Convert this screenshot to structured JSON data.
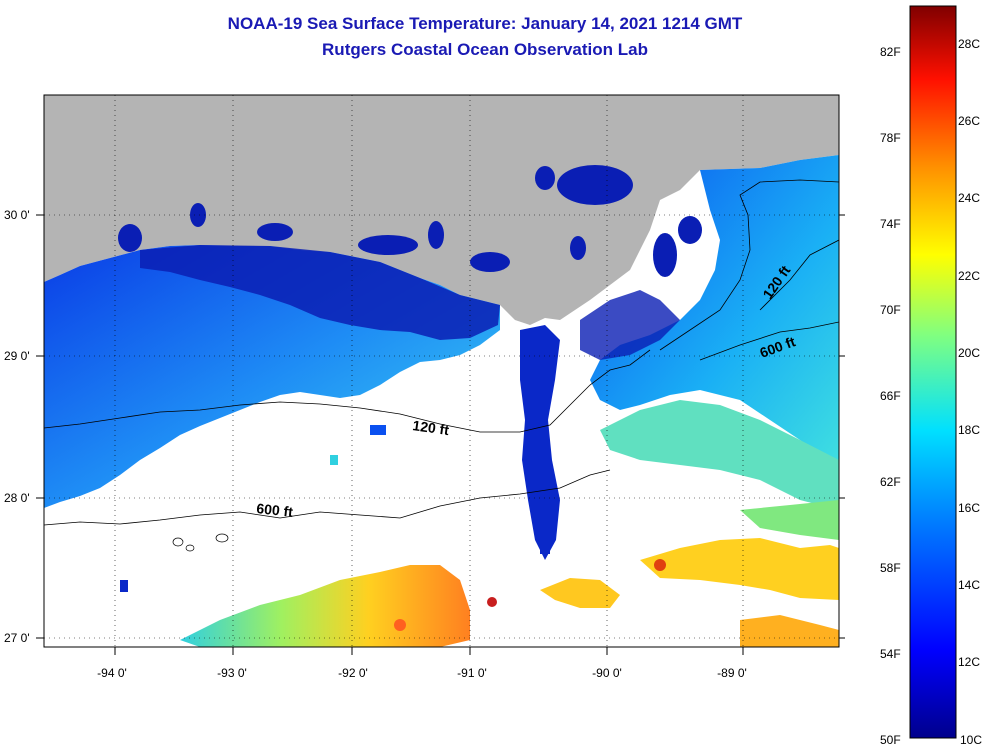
{
  "title": {
    "line1": "NOAA-19 Sea Surface Temperature:  January 14, 2021 1214 GMT",
    "line2": "Rutgers Coastal Ocean Observation Lab"
  },
  "axes": {
    "longitude_labels": [
      "-94 0'",
      "-93 0'",
      "-92 0'",
      "-91 0'",
      "-90 0'",
      "-89 0'"
    ],
    "latitude_labels": [
      "30 0'",
      "29 0'",
      "28 0'",
      "27 0'"
    ]
  },
  "contours": [
    {
      "label": "120 ft",
      "depth_ft": 120
    },
    {
      "label": "600 ft",
      "depth_ft": 600
    },
    {
      "label": "120 ft",
      "depth_ft": 120
    },
    {
      "label": "600 ft",
      "depth_ft": 600
    }
  ],
  "colorbar": {
    "fahrenheit_labels": [
      "82F",
      "78F",
      "74F",
      "70F",
      "66F",
      "62F",
      "58F",
      "54F",
      "50F"
    ],
    "celsius_labels": [
      "28C",
      "26C",
      "24C",
      "22C",
      "20C",
      "18C",
      "16C",
      "14C",
      "12C",
      "10C"
    ],
    "min_c": 10,
    "max_c": 29
  },
  "colors": {
    "land": "#b4b4b4",
    "no_data": "#ffffff",
    "title": "#1a1ab4"
  }
}
